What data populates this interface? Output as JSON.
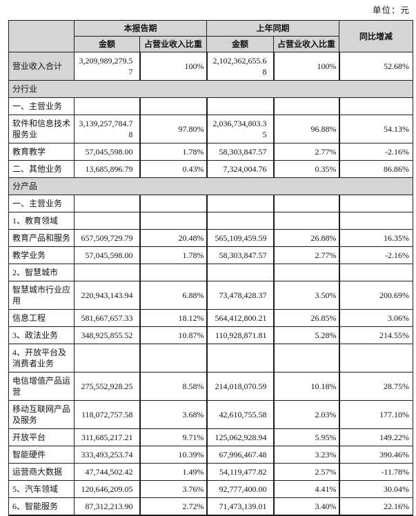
{
  "unit_label": "单位：元",
  "colors": {
    "header_bg": "#d5d5d5",
    "border": "#1c1c1c",
    "page_bg": "#ffffff"
  },
  "table": {
    "header": {
      "current_period": "本报告期",
      "prior_period": "上年同期",
      "yoy": "同比增减",
      "sub": [
        "金额",
        "占营业收入比重",
        "金额",
        "占营业收入比重"
      ]
    },
    "rows": [
      {
        "type": "total",
        "label": "营业收入合计",
        "values": [
          "3,209,989,279.57",
          "100%",
          "2,102,362,655.68",
          "100%",
          "52.68%"
        ]
      },
      {
        "type": "section",
        "label": "分行业"
      },
      {
        "type": "group",
        "label": "一、主营业务",
        "values": [
          "",
          "",
          "",
          "",
          ""
        ]
      },
      {
        "type": "data",
        "label": "软件和信息技术服务业",
        "values": [
          "3,139,257,784.78",
          "97.80%",
          "2,036,734,803.35",
          "96.88%",
          "54.13%"
        ]
      },
      {
        "type": "data",
        "label": "教育教学",
        "values": [
          "57,045,598.00",
          "1.78%",
          "58,303,847.57",
          "2.77%",
          "-2.16%"
        ]
      },
      {
        "type": "data",
        "label": "二、其他业务",
        "values": [
          "13,685,896.79",
          "0.43%",
          "7,324,004.76",
          "0.35%",
          "86.86%"
        ]
      },
      {
        "type": "section",
        "label": "分产品"
      },
      {
        "type": "group",
        "label": "一、主营业务",
        "values": [
          "",
          "",
          "",
          "",
          ""
        ]
      },
      {
        "type": "group",
        "label": "1、教育领域",
        "values": [
          "",
          "",
          "",
          "",
          ""
        ]
      },
      {
        "type": "data",
        "label": "教育产品和服务",
        "values": [
          "657,509,729.79",
          "20.48%",
          "565,109,459.59",
          "26.88%",
          "16.35%"
        ]
      },
      {
        "type": "data",
        "label": "教学业务",
        "values": [
          "57,045,598.00",
          "1.78%",
          "58,303,847.57",
          "2.77%",
          "-2.16%"
        ]
      },
      {
        "type": "group",
        "label": "2、智慧城市",
        "values": [
          "",
          "",
          "",
          "",
          ""
        ]
      },
      {
        "type": "data",
        "label": "智慧城市行业应用",
        "values": [
          "220,943,143.94",
          "6.88%",
          "73,478,428.37",
          "3.50%",
          "200.69%"
        ]
      },
      {
        "type": "data",
        "label": "信息工程",
        "values": [
          "581,667,657.33",
          "18.12%",
          "564,412,800.21",
          "26.85%",
          "3.06%"
        ]
      },
      {
        "type": "data",
        "label": "3、政法业务",
        "values": [
          "348,925,855.52",
          "10.87%",
          "110,928,871.81",
          "5.28%",
          "214.55%"
        ]
      },
      {
        "type": "group",
        "label": "4、开放平台及消费者业务",
        "values": [
          "",
          "",
          "",
          "",
          ""
        ]
      },
      {
        "type": "data",
        "label": "电信增值产品运营",
        "values": [
          "275,552,928.25",
          "8.58%",
          "214,018,070.59",
          "10.18%",
          "28.75%"
        ]
      },
      {
        "type": "data",
        "label": "移动互联网产品及服务",
        "values": [
          "118,072,757.58",
          "3.68%",
          "42,610,755.58",
          "2.03%",
          "177.10%"
        ]
      },
      {
        "type": "data",
        "label": "开放平台",
        "values": [
          "311,685,217.21",
          "9.71%",
          "125,062,928.94",
          "5.95%",
          "149.22%"
        ]
      },
      {
        "type": "data",
        "label": "智能硬件",
        "values": [
          "333,493,253.74",
          "10.39%",
          "67,996,467.48",
          "3.23%",
          "390.46%"
        ]
      },
      {
        "type": "data",
        "label": "运营商大数据",
        "values": [
          "47,744,502.42",
          "1.49%",
          "54,119,477.82",
          "2.57%",
          "-11.78%"
        ]
      },
      {
        "type": "data",
        "label": "5、汽车领域",
        "values": [
          "120,646,209.05",
          "3.76%",
          "92,777,400.00",
          "4.41%",
          "30.04%"
        ]
      },
      {
        "type": "data",
        "label": "6、智能服务",
        "values": [
          "87,312,213.90",
          "2.72%",
          "71,473,139.01",
          "3.40%",
          "22.16%"
        ]
      }
    ]
  }
}
